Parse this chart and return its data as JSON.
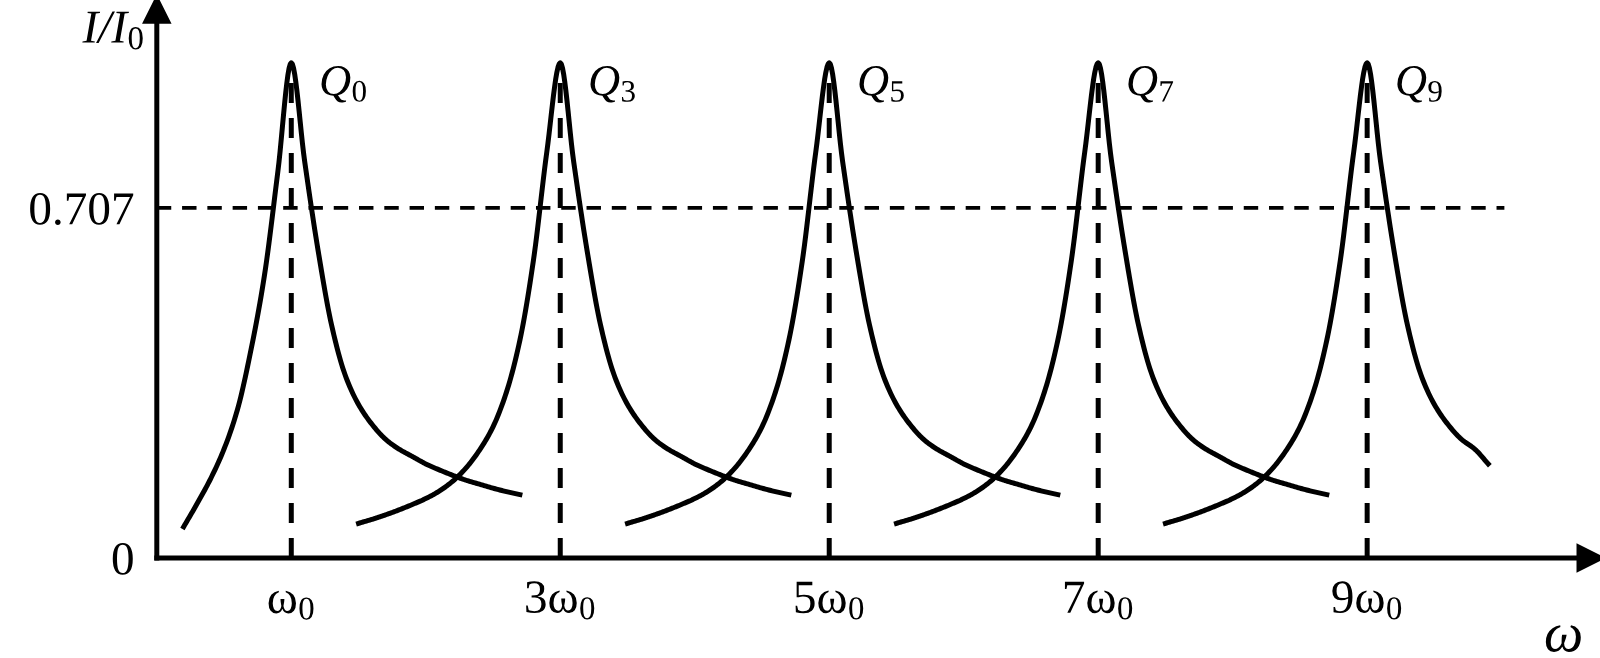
{
  "chart_data": {
    "type": "line",
    "xlabel": "ω",
    "ylabel": "I/I$_{0}$",
    "ylim": [
      0,
      1.107
    ],
    "yticks": [
      0,
      0.707
    ],
    "categories": [
      null,
      null,
      null,
      null,
      null,
      null,
      null,
      null,
      null,
      null,
      "ω$_{0}$",
      null,
      null,
      null,
      null,
      null,
      null,
      null,
      null,
      null,
      null,
      null,
      null,
      null,
      null,
      null,
      null,
      null,
      null,
      null,
      "3ω$_{0}$",
      null,
      null,
      null,
      null,
      null,
      null,
      null,
      null,
      null,
      null,
      null,
      null,
      null,
      null,
      null,
      null,
      null,
      null,
      null,
      "5ω$_{0}$",
      null,
      null,
      null,
      null,
      null,
      null,
      null,
      null,
      null,
      null,
      null,
      null,
      null,
      null,
      null,
      null,
      null,
      null,
      null,
      "7ω$_{0}$",
      null,
      null,
      null,
      null,
      null,
      null,
      null,
      null,
      null,
      null,
      null,
      null,
      null,
      null,
      null,
      null,
      null,
      null,
      null,
      "9ω$_{0}$",
      null,
      null,
      null,
      null,
      null,
      null,
      null,
      null,
      null,
      null,
      null,
      null,
      null,
      null,
      null,
      null
    ],
    "series": [
      {
        "name": "Q$_{0}$",
        "color": "#000000",
        "values": [
          null,
          null,
          0.063,
          0.11,
          0.16,
          0.22,
          0.3,
          0.42,
          0.57,
          0.78,
          1,
          0.8,
          0.62,
          0.47,
          0.37,
          0.31,
          0.27,
          0.24,
          0.22,
          0.205,
          0.19,
          0.178,
          0.167,
          0.157,
          0.149,
          0.141,
          0.134,
          0.128,
          null,
          null,
          null,
          null,
          null,
          null,
          null,
          null,
          null,
          null,
          null,
          null,
          null,
          null,
          null,
          null,
          null,
          null,
          null,
          null,
          null,
          null,
          null,
          null,
          null,
          null,
          null,
          null,
          null,
          null,
          null,
          null,
          null,
          null,
          null,
          null,
          null,
          null,
          null,
          null,
          null,
          null,
          null,
          null,
          null,
          null,
          null,
          null,
          null,
          null,
          null,
          null,
          null,
          null,
          null,
          null,
          null,
          null,
          null,
          null,
          null,
          null,
          null,
          null,
          null,
          null,
          null,
          null,
          null,
          null,
          null,
          null,
          null,
          null,
          null,
          null,
          null,
          null,
          null
        ]
      },
      {
        "name": "Q$_{3}$",
        "color": "#000000",
        "values": [
          null,
          null,
          null,
          null,
          null,
          null,
          null,
          null,
          null,
          null,
          null,
          null,
          null,
          null,
          null,
          0.07,
          0.078,
          0.087,
          0.097,
          0.108,
          0.12,
          0.135,
          0.155,
          0.182,
          0.218,
          0.265,
          0.335,
          0.44,
          0.6,
          0.82,
          1,
          0.8,
          0.62,
          0.47,
          0.37,
          0.31,
          0.27,
          0.24,
          0.22,
          0.205,
          0.19,
          0.178,
          0.167,
          0.157,
          0.149,
          0.141,
          0.134,
          0.128,
          null,
          null,
          null,
          null,
          null,
          null,
          null,
          null,
          null,
          null,
          null,
          null,
          null,
          null,
          null,
          null,
          null,
          null,
          null,
          null,
          null,
          null,
          null,
          null,
          null,
          null,
          null,
          null,
          null,
          null,
          null,
          null,
          null,
          null,
          null,
          null,
          null,
          null,
          null,
          null,
          null,
          null,
          null,
          null,
          null,
          null,
          null,
          null,
          null,
          null,
          null,
          null,
          null,
          null,
          null,
          null,
          null,
          null,
          null
        ]
      },
      {
        "name": "Q$_{5}$",
        "color": "#000000",
        "values": [
          null,
          null,
          null,
          null,
          null,
          null,
          null,
          null,
          null,
          null,
          null,
          null,
          null,
          null,
          null,
          null,
          null,
          null,
          null,
          null,
          null,
          null,
          null,
          null,
          null,
          null,
          null,
          null,
          null,
          null,
          null,
          null,
          null,
          null,
          null,
          0.07,
          0.078,
          0.087,
          0.097,
          0.108,
          0.12,
          0.135,
          0.155,
          0.182,
          0.218,
          0.265,
          0.335,
          0.44,
          0.6,
          0.82,
          1,
          0.8,
          0.62,
          0.47,
          0.37,
          0.31,
          0.27,
          0.24,
          0.22,
          0.205,
          0.19,
          0.178,
          0.167,
          0.157,
          0.149,
          0.141,
          0.134,
          0.128,
          null,
          null,
          null,
          null,
          null,
          null,
          null,
          null,
          null,
          null,
          null,
          null,
          null,
          null,
          null,
          null,
          null,
          null,
          null,
          null,
          null,
          null,
          null,
          null,
          null,
          null,
          null,
          null,
          null,
          null,
          null,
          null,
          null,
          null,
          null,
          null,
          null,
          null,
          null
        ]
      },
      {
        "name": "Q$_{7}$",
        "color": "#000000",
        "values": [
          null,
          null,
          null,
          null,
          null,
          null,
          null,
          null,
          null,
          null,
          null,
          null,
          null,
          null,
          null,
          null,
          null,
          null,
          null,
          null,
          null,
          null,
          null,
          null,
          null,
          null,
          null,
          null,
          null,
          null,
          null,
          null,
          null,
          null,
          null,
          null,
          null,
          null,
          null,
          null,
          null,
          null,
          null,
          null,
          null,
          null,
          null,
          null,
          null,
          null,
          null,
          null,
          null,
          null,
          null,
          0.07,
          0.078,
          0.087,
          0.097,
          0.108,
          0.12,
          0.135,
          0.155,
          0.182,
          0.218,
          0.265,
          0.335,
          0.44,
          0.6,
          0.82,
          1,
          0.8,
          0.62,
          0.47,
          0.37,
          0.31,
          0.27,
          0.24,
          0.22,
          0.205,
          0.19,
          0.178,
          0.167,
          0.157,
          0.149,
          0.141,
          0.134,
          0.128,
          null,
          null,
          null,
          null,
          null,
          null,
          null,
          null,
          null,
          null,
          null,
          null,
          null,
          null,
          null,
          null,
          null,
          null,
          null
        ]
      },
      {
        "name": "Q$_{9}$",
        "color": "#000000",
        "values": [
          null,
          null,
          null,
          null,
          null,
          null,
          null,
          null,
          null,
          null,
          null,
          null,
          null,
          null,
          null,
          null,
          null,
          null,
          null,
          null,
          null,
          null,
          null,
          null,
          null,
          null,
          null,
          null,
          null,
          null,
          null,
          null,
          null,
          null,
          null,
          null,
          null,
          null,
          null,
          null,
          null,
          null,
          null,
          null,
          null,
          null,
          null,
          null,
          null,
          null,
          null,
          null,
          null,
          null,
          null,
          null,
          null,
          null,
          null,
          null,
          null,
          null,
          null,
          null,
          null,
          null,
          null,
          null,
          null,
          null,
          null,
          null,
          null,
          null,
          null,
          0.07,
          0.078,
          0.087,
          0.097,
          0.108,
          0.12,
          0.135,
          0.155,
          0.182,
          0.218,
          0.265,
          0.335,
          0.44,
          0.6,
          0.82,
          1,
          0.8,
          0.62,
          0.47,
          0.37,
          0.31,
          0.27,
          0.24,
          0.22,
          0.19,
          null,
          null,
          null,
          null,
          null,
          null,
          null
        ]
      }
    ],
    "ref_lines": [
      {
        "axis": "y",
        "value": 0.707,
        "line_style": "dashed",
        "color": "#000000"
      },
      {
        "axis": "x",
        "value": "ω$_{0}$",
        "line_style": "dashed",
        "color": "#000000"
      },
      {
        "axis": "x",
        "value": "3ω$_{0}$",
        "line_style": "dashed",
        "color": "#000000"
      },
      {
        "axis": "x",
        "value": "5ω$_{0}$",
        "line_style": "dashed",
        "color": "#000000"
      },
      {
        "axis": "x",
        "value": "7ω$_{0}$",
        "line_style": "dashed",
        "color": "#000000"
      },
      {
        "axis": "x",
        "value": "9ω$_{0}$",
        "line_style": "dashed",
        "color": "#000000"
      }
    ],
    "line_style": "solid",
    "marker": "none",
    "grid": false,
    "legend": false
  }
}
